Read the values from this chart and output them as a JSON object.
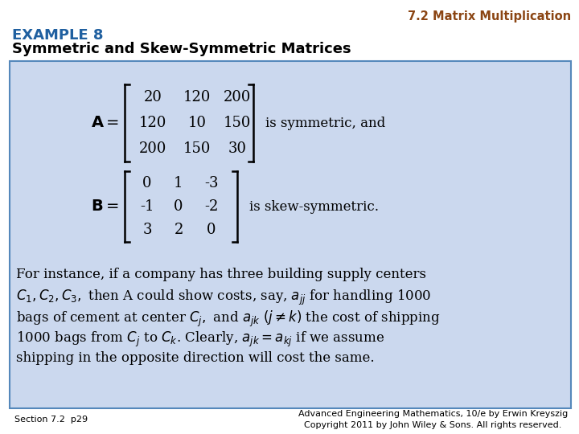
{
  "title_section": "7.2 Matrix Multiplication",
  "title_color": "#8B4513",
  "example_label": "EXAMPLE 8",
  "example_color": "#2060A0",
  "subtitle": "Symmetric and Skew-Symmetric Matrices",
  "subtitle_color": "#000000",
  "bg_color": "#FFFFFF",
  "box_bg_color": "#CBD8EE",
  "box_border_color": "#5588BB",
  "footer_left": "Section 7.2  p29",
  "footer_right": "Advanced Engineering Mathematics, 10/e by Erwin Kreyszig\nCopyright 2011 by John Wiley & Sons. All rights reserved.",
  "matrix_A": [
    [
      20,
      120,
      200
    ],
    [
      120,
      10,
      150
    ],
    [
      200,
      150,
      30
    ]
  ],
  "matrix_A_desc": "is symmetric, and",
  "matrix_B": [
    [
      0,
      1,
      -3
    ],
    [
      -1,
      0,
      -2
    ],
    [
      3,
      2,
      0
    ]
  ],
  "matrix_B_desc": "is skew-symmetric."
}
